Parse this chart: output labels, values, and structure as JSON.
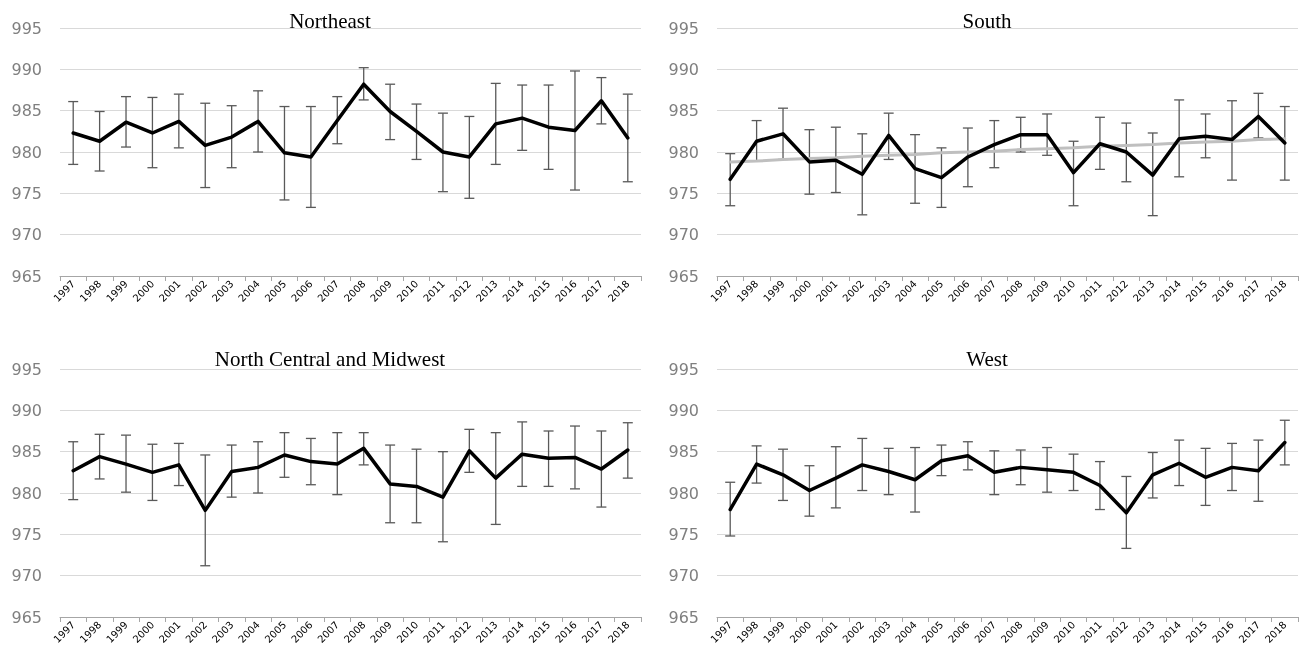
{
  "chart_data": [
    {
      "type": "line",
      "title": "Northeast",
      "categories": [
        "1997",
        "1998",
        "1999",
        "2000",
        "2001",
        "2002",
        "2003",
        "2004",
        "2005",
        "2006",
        "2007",
        "2008",
        "2009",
        "2010",
        "2011",
        "2012",
        "2013",
        "2014",
        "2015",
        "2016",
        "2017",
        "2018"
      ],
      "series": [
        {
          "color": "#000000",
          "values": [
            982.3,
            981.3,
            983.6,
            982.3,
            983.7,
            980.8,
            981.8,
            983.7,
            979.9,
            979.4,
            983.8,
            988.2,
            984.9,
            982.5,
            980.0,
            979.4,
            983.4,
            984.1,
            983.0,
            982.6,
            986.2,
            981.7
          ],
          "errors": [
            [
              978.5,
              986.1
            ],
            [
              977.7,
              984.9
            ],
            [
              980.6,
              986.7
            ],
            [
              978.1,
              986.6
            ],
            [
              980.5,
              987.0
            ],
            [
              975.7,
              985.9
            ],
            [
              978.1,
              985.6
            ],
            [
              980.0,
              987.4
            ],
            [
              974.2,
              985.5
            ],
            [
              973.3,
              985.5
            ],
            [
              981.0,
              986.7
            ],
            [
              986.3,
              990.2
            ],
            [
              981.5,
              988.2
            ],
            [
              979.1,
              985.8
            ],
            [
              975.2,
              984.7
            ],
            [
              974.4,
              984.3
            ],
            [
              978.5,
              988.3
            ],
            [
              980.2,
              988.1
            ],
            [
              977.9,
              988.1
            ],
            [
              975.4,
              989.8
            ],
            [
              983.4,
              989.0
            ],
            [
              976.4,
              987.0
            ]
          ]
        }
      ],
      "ylim": [
        965,
        995
      ],
      "yticks": [
        965,
        970,
        975,
        980,
        985,
        990,
        995
      ],
      "grid": "y",
      "marker": "none",
      "line_style": "solid"
    },
    {
      "type": "line",
      "title": "South",
      "categories": [
        "1997",
        "1998",
        "1999",
        "2000",
        "2001",
        "2002",
        "2003",
        "2004",
        "2005",
        "2006",
        "2007",
        "2008",
        "2009",
        "2010",
        "2011",
        "2012",
        "2013",
        "2014",
        "2015",
        "2016",
        "2017",
        "2018"
      ],
      "series": [
        {
          "color": "#000000",
          "values": [
            976.7,
            981.3,
            982.2,
            978.8,
            979.0,
            977.3,
            982.0,
            978.0,
            976.9,
            979.4,
            980.9,
            982.1,
            982.1,
            977.5,
            981.0,
            980.0,
            977.2,
            981.6,
            981.9,
            981.5,
            984.3,
            981.1
          ],
          "errors": [
            [
              973.5,
              979.8
            ],
            [
              978.9,
              983.8
            ],
            [
              979.1,
              985.3
            ],
            [
              974.9,
              982.7
            ],
            [
              975.1,
              983.0
            ],
            [
              972.4,
              982.2
            ],
            [
              979.1,
              984.7
            ],
            [
              973.8,
              982.1
            ],
            [
              973.3,
              980.5
            ],
            [
              975.8,
              982.9
            ],
            [
              978.1,
              983.8
            ],
            [
              980.0,
              984.2
            ],
            [
              979.6,
              984.6
            ],
            [
              973.5,
              981.3
            ],
            [
              977.9,
              984.2
            ],
            [
              976.4,
              983.5
            ],
            [
              972.3,
              982.3
            ],
            [
              977.0,
              986.3
            ],
            [
              979.3,
              984.6
            ],
            [
              976.6,
              986.2
            ],
            [
              981.7,
              987.1
            ],
            [
              976.6,
              985.5
            ]
          ]
        },
        {
          "type": "line",
          "color": "#bfbfbf",
          "values": [
            978.8,
            978.9,
            979.1,
            979.2,
            979.3,
            979.5,
            979.6,
            979.7,
            979.9,
            980.0,
            980.1,
            980.3,
            980.4,
            980.5,
            980.7,
            980.8,
            980.9,
            981.1,
            981.2,
            981.3,
            981.5,
            981.6
          ]
        }
      ],
      "ylim": [
        965,
        995
      ],
      "yticks": [
        965,
        970,
        975,
        980,
        985,
        990,
        995
      ],
      "grid": "y",
      "marker": "none",
      "line_style": "solid"
    },
    {
      "type": "line",
      "title": "North Central and Midwest",
      "categories": [
        "1997",
        "1998",
        "1999",
        "2000",
        "2001",
        "2002",
        "2003",
        "2004",
        "2005",
        "2006",
        "2007",
        "2008",
        "2009",
        "2010",
        "2011",
        "2012",
        "2013",
        "2014",
        "2015",
        "2016",
        "2017",
        "2018"
      ],
      "series": [
        {
          "color": "#000000",
          "values": [
            982.7,
            984.4,
            983.5,
            982.5,
            983.4,
            977.9,
            982.6,
            983.1,
            984.6,
            983.8,
            983.5,
            985.4,
            981.1,
            980.8,
            979.5,
            985.1,
            981.8,
            984.7,
            984.2,
            984.3,
            982.9,
            985.2
          ],
          "errors": [
            [
              979.2,
              986.2
            ],
            [
              981.7,
              987.1
            ],
            [
              980.1,
              987.0
            ],
            [
              979.1,
              985.9
            ],
            [
              980.9,
              986.0
            ],
            [
              971.2,
              984.6
            ],
            [
              979.5,
              985.8
            ],
            [
              980.0,
              986.2
            ],
            [
              981.9,
              987.3
            ],
            [
              981.0,
              986.6
            ],
            [
              979.8,
              987.3
            ],
            [
              983.4,
              987.3
            ],
            [
              976.4,
              985.8
            ],
            [
              976.4,
              985.3
            ],
            [
              974.1,
              985.0
            ],
            [
              982.5,
              987.7
            ],
            [
              976.2,
              987.3
            ],
            [
              980.8,
              988.6
            ],
            [
              980.8,
              987.5
            ],
            [
              980.5,
              988.1
            ],
            [
              978.3,
              987.5
            ],
            [
              981.8,
              988.5
            ]
          ]
        }
      ],
      "ylim": [
        965,
        995
      ],
      "yticks": [
        965,
        970,
        975,
        980,
        985,
        990,
        995
      ],
      "grid": "y",
      "marker": "none",
      "line_style": "solid"
    },
    {
      "type": "line",
      "title": "West",
      "categories": [
        "1997",
        "1998",
        "1999",
        "2000",
        "2001",
        "2002",
        "2003",
        "2004",
        "2005",
        "2006",
        "2007",
        "2008",
        "2009",
        "2010",
        "2011",
        "2012",
        "2013",
        "2014",
        "2015",
        "2016",
        "2017",
        "2018"
      ],
      "series": [
        {
          "color": "#000000",
          "values": [
            978.0,
            983.5,
            982.2,
            980.3,
            981.8,
            983.4,
            982.6,
            981.6,
            983.9,
            984.5,
            982.5,
            983.1,
            982.8,
            982.5,
            980.9,
            977.6,
            982.2,
            983.6,
            981.9,
            983.1,
            982.7,
            986.1
          ],
          "errors": [
            [
              974.8,
              981.3
            ],
            [
              981.2,
              985.7
            ],
            [
              979.1,
              985.3
            ],
            [
              977.2,
              983.3
            ],
            [
              978.2,
              985.6
            ],
            [
              980.3,
              986.6
            ],
            [
              979.8,
              985.4
            ],
            [
              977.7,
              985.5
            ],
            [
              982.1,
              985.8
            ],
            [
              982.8,
              986.2
            ],
            [
              979.8,
              985.1
            ],
            [
              981.0,
              985.2
            ],
            [
              980.1,
              985.5
            ],
            [
              980.3,
              984.7
            ],
            [
              978.0,
              983.8
            ],
            [
              973.3,
              982.0
            ],
            [
              979.4,
              984.9
            ],
            [
              980.9,
              986.4
            ],
            [
              978.5,
              985.4
            ],
            [
              980.3,
              986.0
            ],
            [
              979.0,
              986.4
            ],
            [
              983.4,
              988.8
            ]
          ]
        }
      ],
      "ylim": [
        965,
        995
      ],
      "yticks": [
        965,
        970,
        975,
        980,
        985,
        990,
        995
      ],
      "grid": "y",
      "marker": "none",
      "line_style": "solid"
    }
  ]
}
